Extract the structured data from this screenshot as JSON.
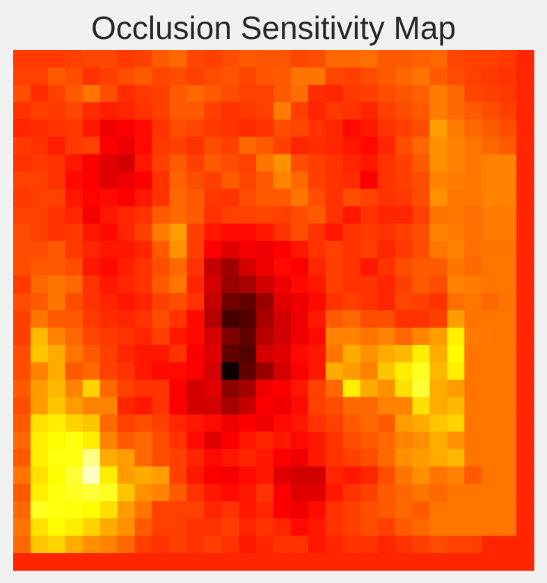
{
  "figure": {
    "title": "Occlusion Sensitivity Map",
    "background": "#f0f0f0"
  },
  "chart_data": {
    "type": "heatmap",
    "title": "Occlusion Sensitivity Map",
    "xlabel": "",
    "ylabel": "",
    "axes_visible": false,
    "colormap": "hot",
    "value_range": [
      0,
      1
    ],
    "rows": 30,
    "cols": 30,
    "values": [
      [
        0.45,
        0.45,
        0.45,
        0.46,
        0.47,
        0.47,
        0.45,
        0.46,
        0.5,
        0.52,
        0.47,
        0.46,
        0.48,
        0.5,
        0.49,
        0.49,
        0.47,
        0.48,
        0.52,
        0.52,
        0.53,
        0.5,
        0.5,
        0.51,
        0.52,
        0.47,
        0.46,
        0.46,
        0.45,
        0.42
      ],
      [
        0.46,
        0.46,
        0.5,
        0.48,
        0.44,
        0.46,
        0.48,
        0.5,
        0.47,
        0.48,
        0.46,
        0.48,
        0.49,
        0.47,
        0.49,
        0.5,
        0.54,
        0.54,
        0.47,
        0.46,
        0.48,
        0.5,
        0.52,
        0.54,
        0.5,
        0.48,
        0.46,
        0.45,
        0.44,
        0.42
      ],
      [
        0.48,
        0.43,
        0.46,
        0.5,
        0.54,
        0.48,
        0.43,
        0.45,
        0.46,
        0.5,
        0.52,
        0.5,
        0.48,
        0.46,
        0.46,
        0.5,
        0.53,
        0.43,
        0.42,
        0.45,
        0.46,
        0.48,
        0.49,
        0.51,
        0.55,
        0.52,
        0.47,
        0.46,
        0.45,
        0.42
      ],
      [
        0.44,
        0.46,
        0.45,
        0.47,
        0.43,
        0.41,
        0.42,
        0.44,
        0.46,
        0.5,
        0.5,
        0.46,
        0.44,
        0.45,
        0.46,
        0.55,
        0.46,
        0.42,
        0.45,
        0.44,
        0.42,
        0.46,
        0.48,
        0.5,
        0.55,
        0.52,
        0.5,
        0.48,
        0.46,
        0.42
      ],
      [
        0.42,
        0.43,
        0.44,
        0.45,
        0.4,
        0.34,
        0.36,
        0.38,
        0.44,
        0.48,
        0.47,
        0.45,
        0.44,
        0.43,
        0.44,
        0.48,
        0.47,
        0.44,
        0.42,
        0.38,
        0.4,
        0.44,
        0.46,
        0.48,
        0.6,
        0.55,
        0.52,
        0.5,
        0.48,
        0.42
      ],
      [
        0.45,
        0.44,
        0.41,
        0.45,
        0.46,
        0.36,
        0.34,
        0.38,
        0.45,
        0.46,
        0.44,
        0.48,
        0.46,
        0.52,
        0.5,
        0.46,
        0.42,
        0.43,
        0.42,
        0.4,
        0.38,
        0.42,
        0.48,
        0.52,
        0.58,
        0.56,
        0.54,
        0.52,
        0.5,
        0.42
      ],
      [
        0.44,
        0.45,
        0.44,
        0.4,
        0.36,
        0.32,
        0.3,
        0.4,
        0.46,
        0.5,
        0.46,
        0.5,
        0.48,
        0.46,
        0.54,
        0.58,
        0.48,
        0.46,
        0.44,
        0.42,
        0.4,
        0.44,
        0.46,
        0.5,
        0.58,
        0.56,
        0.54,
        0.56,
        0.56,
        0.42
      ],
      [
        0.46,
        0.46,
        0.44,
        0.38,
        0.36,
        0.32,
        0.34,
        0.36,
        0.44,
        0.51,
        0.48,
        0.46,
        0.5,
        0.47,
        0.5,
        0.56,
        0.52,
        0.46,
        0.44,
        0.43,
        0.36,
        0.44,
        0.46,
        0.48,
        0.56,
        0.55,
        0.54,
        0.56,
        0.56,
        0.42
      ],
      [
        0.45,
        0.46,
        0.46,
        0.4,
        0.37,
        0.38,
        0.36,
        0.4,
        0.44,
        0.52,
        0.5,
        0.45,
        0.44,
        0.48,
        0.5,
        0.5,
        0.54,
        0.48,
        0.44,
        0.48,
        0.46,
        0.44,
        0.45,
        0.48,
        0.58,
        0.54,
        0.54,
        0.56,
        0.56,
        0.42
      ],
      [
        0.46,
        0.46,
        0.44,
        0.42,
        0.35,
        0.4,
        0.42,
        0.44,
        0.5,
        0.52,
        0.5,
        0.44,
        0.46,
        0.46,
        0.47,
        0.46,
        0.48,
        0.5,
        0.44,
        0.4,
        0.44,
        0.42,
        0.42,
        0.46,
        0.54,
        0.54,
        0.53,
        0.55,
        0.55,
        0.42
      ],
      [
        0.48,
        0.46,
        0.44,
        0.45,
        0.4,
        0.38,
        0.42,
        0.46,
        0.55,
        0.6,
        0.46,
        0.4,
        0.38,
        0.38,
        0.4,
        0.44,
        0.48,
        0.44,
        0.4,
        0.44,
        0.45,
        0.44,
        0.46,
        0.48,
        0.56,
        0.55,
        0.53,
        0.55,
        0.55,
        0.42
      ],
      [
        0.48,
        0.48,
        0.5,
        0.45,
        0.42,
        0.4,
        0.4,
        0.42,
        0.5,
        0.58,
        0.46,
        0.36,
        0.32,
        0.35,
        0.34,
        0.36,
        0.4,
        0.44,
        0.46,
        0.44,
        0.46,
        0.42,
        0.45,
        0.48,
        0.54,
        0.56,
        0.53,
        0.54,
        0.54,
        0.42
      ],
      [
        0.48,
        0.5,
        0.5,
        0.48,
        0.4,
        0.38,
        0.41,
        0.44,
        0.48,
        0.52,
        0.44,
        0.28,
        0.23,
        0.3,
        0.34,
        0.38,
        0.36,
        0.42,
        0.46,
        0.44,
        0.4,
        0.44,
        0.48,
        0.5,
        0.5,
        0.54,
        0.52,
        0.54,
        0.54,
        0.42
      ],
      [
        0.45,
        0.52,
        0.54,
        0.52,
        0.44,
        0.4,
        0.42,
        0.44,
        0.5,
        0.54,
        0.42,
        0.3,
        0.22,
        0.24,
        0.3,
        0.34,
        0.38,
        0.4,
        0.46,
        0.44,
        0.44,
        0.42,
        0.46,
        0.5,
        0.48,
        0.56,
        0.55,
        0.54,
        0.54,
        0.42
      ],
      [
        0.48,
        0.5,
        0.54,
        0.48,
        0.44,
        0.42,
        0.4,
        0.42,
        0.46,
        0.48,
        0.44,
        0.28,
        0.16,
        0.14,
        0.22,
        0.32,
        0.34,
        0.38,
        0.44,
        0.46,
        0.44,
        0.42,
        0.47,
        0.46,
        0.44,
        0.53,
        0.54,
        0.52,
        0.54,
        0.42
      ],
      [
        0.46,
        0.54,
        0.5,
        0.5,
        0.45,
        0.43,
        0.42,
        0.44,
        0.48,
        0.44,
        0.38,
        0.26,
        0.1,
        0.12,
        0.24,
        0.3,
        0.34,
        0.4,
        0.5,
        0.52,
        0.48,
        0.48,
        0.44,
        0.44,
        0.46,
        0.6,
        0.54,
        0.54,
        0.54,
        0.42
      ],
      [
        0.46,
        0.64,
        0.56,
        0.52,
        0.47,
        0.45,
        0.44,
        0.42,
        0.46,
        0.4,
        0.38,
        0.3,
        0.18,
        0.14,
        0.26,
        0.3,
        0.34,
        0.38,
        0.56,
        0.56,
        0.54,
        0.56,
        0.52,
        0.56,
        0.6,
        0.72,
        0.55,
        0.54,
        0.54,
        0.42
      ],
      [
        0.48,
        0.66,
        0.62,
        0.54,
        0.5,
        0.46,
        0.42,
        0.4,
        0.4,
        0.44,
        0.36,
        0.32,
        0.14,
        0.12,
        0.3,
        0.32,
        0.38,
        0.4,
        0.54,
        0.62,
        0.58,
        0.62,
        0.64,
        0.72,
        0.62,
        0.74,
        0.54,
        0.54,
        0.54,
        0.42
      ],
      [
        0.48,
        0.56,
        0.62,
        0.5,
        0.52,
        0.46,
        0.44,
        0.4,
        0.38,
        0.38,
        0.36,
        0.3,
        0.02,
        0.14,
        0.22,
        0.3,
        0.36,
        0.4,
        0.62,
        0.6,
        0.56,
        0.66,
        0.72,
        0.78,
        0.64,
        0.72,
        0.54,
        0.54,
        0.54,
        0.42
      ],
      [
        0.5,
        0.6,
        0.64,
        0.56,
        0.68,
        0.52,
        0.46,
        0.44,
        0.44,
        0.36,
        0.3,
        0.32,
        0.2,
        0.24,
        0.34,
        0.36,
        0.4,
        0.46,
        0.52,
        0.72,
        0.62,
        0.58,
        0.7,
        0.8,
        0.62,
        0.6,
        0.54,
        0.54,
        0.54,
        0.42
      ],
      [
        0.48,
        0.6,
        0.66,
        0.6,
        0.56,
        0.56,
        0.42,
        0.4,
        0.44,
        0.36,
        0.3,
        0.3,
        0.24,
        0.28,
        0.36,
        0.34,
        0.38,
        0.46,
        0.48,
        0.52,
        0.52,
        0.56,
        0.56,
        0.7,
        0.62,
        0.64,
        0.54,
        0.54,
        0.54,
        0.42
      ],
      [
        0.5,
        0.7,
        0.72,
        0.68,
        0.66,
        0.52,
        0.46,
        0.48,
        0.46,
        0.42,
        0.4,
        0.38,
        0.34,
        0.36,
        0.34,
        0.38,
        0.4,
        0.44,
        0.46,
        0.5,
        0.52,
        0.5,
        0.6,
        0.62,
        0.66,
        0.68,
        0.54,
        0.54,
        0.54,
        0.42
      ],
      [
        0.52,
        0.72,
        0.74,
        0.76,
        0.72,
        0.56,
        0.5,
        0.52,
        0.48,
        0.44,
        0.38,
        0.32,
        0.36,
        0.4,
        0.42,
        0.4,
        0.38,
        0.4,
        0.44,
        0.48,
        0.5,
        0.52,
        0.56,
        0.58,
        0.62,
        0.58,
        0.54,
        0.54,
        0.54,
        0.42
      ],
      [
        0.5,
        0.72,
        0.76,
        0.76,
        0.88,
        0.62,
        0.6,
        0.52,
        0.48,
        0.46,
        0.42,
        0.38,
        0.4,
        0.42,
        0.4,
        0.36,
        0.34,
        0.4,
        0.44,
        0.46,
        0.48,
        0.52,
        0.58,
        0.6,
        0.62,
        0.64,
        0.54,
        0.54,
        0.54,
        0.42
      ],
      [
        0.54,
        0.7,
        0.74,
        0.8,
        0.94,
        0.72,
        0.6,
        0.62,
        0.6,
        0.46,
        0.4,
        0.36,
        0.35,
        0.38,
        0.4,
        0.32,
        0.3,
        0.3,
        0.42,
        0.4,
        0.42,
        0.48,
        0.54,
        0.58,
        0.54,
        0.56,
        0.5,
        0.54,
        0.54,
        0.42
      ],
      [
        0.5,
        0.72,
        0.76,
        0.78,
        0.8,
        0.78,
        0.66,
        0.58,
        0.56,
        0.5,
        0.44,
        0.4,
        0.38,
        0.4,
        0.44,
        0.36,
        0.32,
        0.32,
        0.4,
        0.44,
        0.46,
        0.5,
        0.52,
        0.54,
        0.52,
        0.54,
        0.54,
        0.54,
        0.54,
        0.42
      ],
      [
        0.52,
        0.78,
        0.76,
        0.76,
        0.74,
        0.7,
        0.6,
        0.54,
        0.46,
        0.46,
        0.46,
        0.42,
        0.44,
        0.4,
        0.42,
        0.36,
        0.34,
        0.38,
        0.44,
        0.46,
        0.48,
        0.5,
        0.52,
        0.5,
        0.54,
        0.54,
        0.54,
        0.54,
        0.54,
        0.42
      ],
      [
        0.54,
        0.7,
        0.74,
        0.72,
        0.68,
        0.62,
        0.58,
        0.5,
        0.46,
        0.46,
        0.44,
        0.44,
        0.46,
        0.42,
        0.44,
        0.42,
        0.38,
        0.4,
        0.44,
        0.46,
        0.48,
        0.46,
        0.5,
        0.52,
        0.54,
        0.54,
        0.54,
        0.54,
        0.54,
        0.42
      ],
      [
        0.52,
        0.66,
        0.68,
        0.62,
        0.58,
        0.56,
        0.52,
        0.46,
        0.44,
        0.46,
        0.44,
        0.46,
        0.44,
        0.4,
        0.42,
        0.44,
        0.44,
        0.4,
        0.42,
        0.44,
        0.44,
        0.42,
        0.44,
        0.46,
        0.48,
        0.46,
        0.46,
        0.42,
        0.42,
        0.42
      ],
      [
        0.42,
        0.42,
        0.42,
        0.42,
        0.42,
        0.42,
        0.42,
        0.42,
        0.42,
        0.42,
        0.42,
        0.42,
        0.42,
        0.42,
        0.42,
        0.42,
        0.42,
        0.42,
        0.42,
        0.42,
        0.42,
        0.42,
        0.42,
        0.42,
        0.42,
        0.42,
        0.42,
        0.42,
        0.42,
        0.42
      ]
    ]
  }
}
